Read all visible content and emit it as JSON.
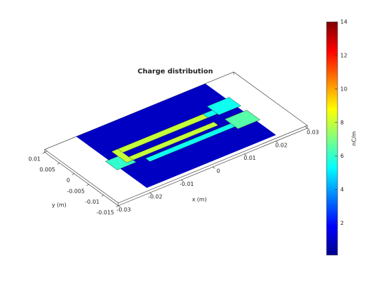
{
  "chart_data": {
    "type": "surface3d",
    "title": "Charge distribution",
    "xlabel": "x (m)",
    "ylabel": "y (m)",
    "xlim": [
      -0.03,
      0.03
    ],
    "ylim": [
      -0.015,
      0.01
    ],
    "xticks": [
      -0.03,
      -0.02,
      -0.01,
      0,
      0.01,
      0.02,
      0.03
    ],
    "yticks": [
      0.01,
      0.005,
      0,
      -0.005,
      -0.01,
      -0.015
    ],
    "surface_values": [
      1,
      6,
      8,
      8,
      8,
      5.5,
      5.5,
      5.5,
      6.5
    ],
    "colormap": "jet",
    "clim": [
      0.1,
      14
    ],
    "cticks": [
      2,
      4,
      6,
      8,
      10,
      12,
      14
    ],
    "colorbar_label": "nC/m"
  }
}
